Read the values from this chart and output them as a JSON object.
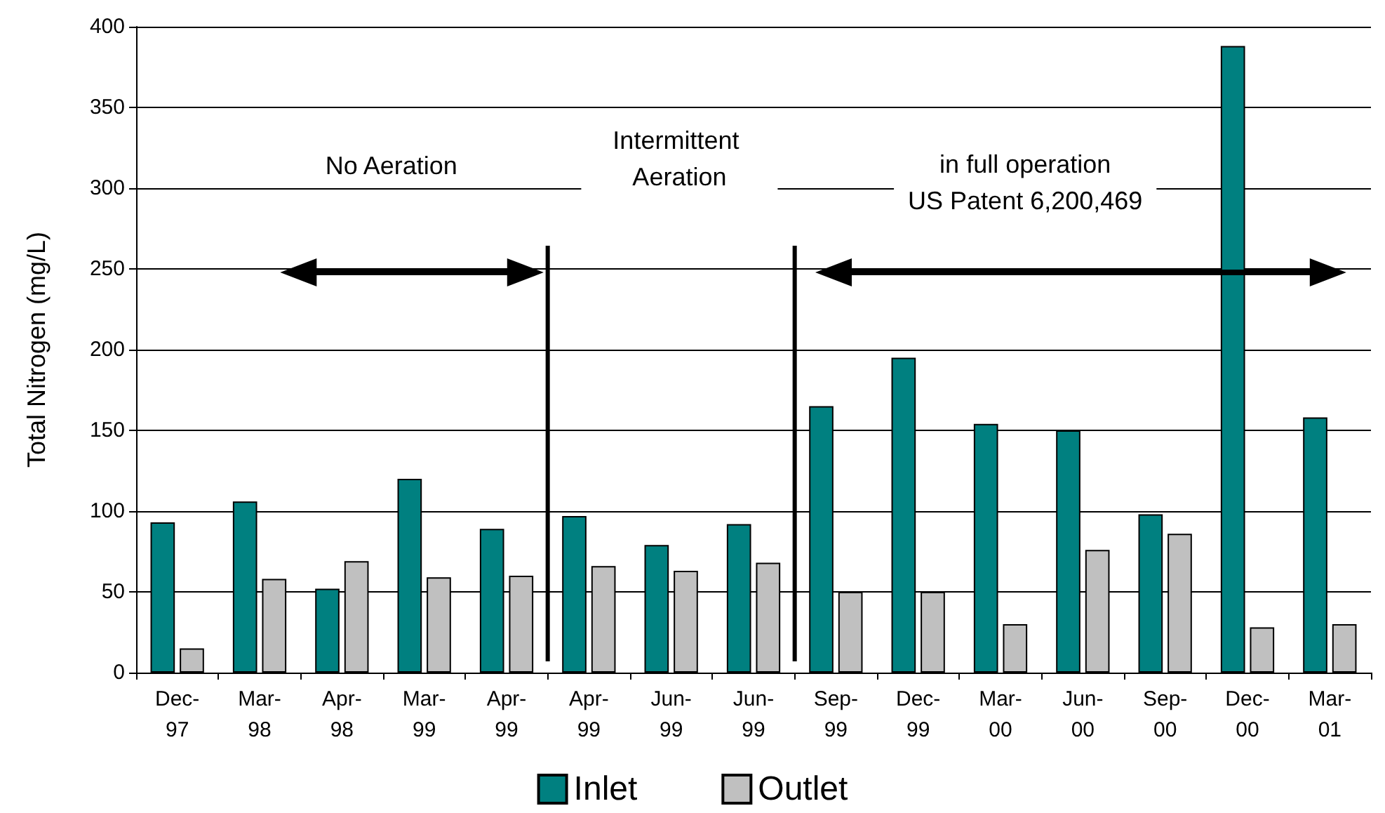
{
  "chart_data": {
    "type": "bar",
    "ylabel": "Total Nitrogen (mg/L)",
    "categories": [
      "Dec-97",
      "Mar-98",
      "Apr-98",
      "Mar-99",
      "Apr-99",
      "Apr-99",
      "Jun-99",
      "Jun-99",
      "Sep-99",
      "Dec-99",
      "Mar-00",
      "Jun-00",
      "Sep-00",
      "Dec-00",
      "Mar-01"
    ],
    "series": [
      {
        "name": "Inlet",
        "color": "#008080",
        "values": [
          93,
          106,
          52,
          120,
          89,
          97,
          79,
          92,
          165,
          195,
          154,
          150,
          98,
          388,
          158
        ]
      },
      {
        "name": "Outlet",
        "color": "#c0c0c0",
        "values": [
          15,
          58,
          69,
          59,
          60,
          66,
          63,
          68,
          50,
          50,
          30,
          76,
          86,
          28,
          30
        ]
      }
    ],
    "ylim": [
      0,
      400
    ],
    "yticks": [
      0,
      50,
      100,
      150,
      200,
      250,
      300,
      350,
      400
    ],
    "grid": "y",
    "legend": "bottom",
    "annotations": [
      "No Aeration",
      "Intermittent Aeration",
      "in full operation\nUS Patent 6,200,469"
    ]
  }
}
